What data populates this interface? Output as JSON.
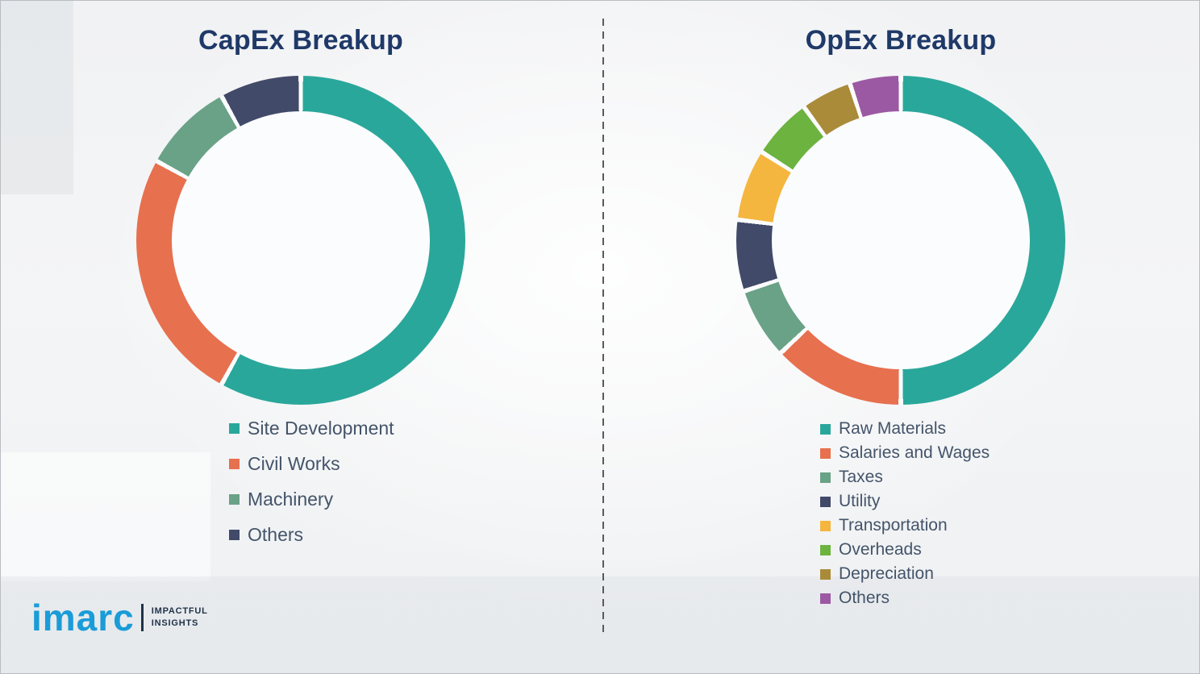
{
  "chart_data": [
    {
      "type": "pie",
      "subtype": "donut",
      "title": "CapEx Breakup",
      "labels": [
        "Site Development",
        "Civil Works",
        "Machinery",
        "Others"
      ],
      "values": [
        58,
        25,
        9,
        8
      ],
      "colors": [
        "#2aa79b",
        "#e7704f",
        "#6aa287",
        "#414a68"
      ],
      "start_angle": "top, clockwise",
      "legend_position": "below-chart-left",
      "value_units": "percent-estimated"
    },
    {
      "type": "pie",
      "subtype": "donut",
      "title": "OpEx Breakup",
      "labels": [
        "Raw Materials",
        "Salaries and Wages",
        "Taxes",
        "Utility",
        "Transportation",
        "Overheads",
        "Depreciation",
        "Others"
      ],
      "values": [
        50,
        13,
        7,
        7,
        7,
        6,
        5,
        5
      ],
      "colors": [
        "#2aa79b",
        "#e7704f",
        "#6aa287",
        "#414a68",
        "#f4b63f",
        "#6cb33f",
        "#a98b3a",
        "#9c59a3"
      ],
      "start_angle": "top, clockwise",
      "legend_position": "below-chart-left",
      "value_units": "percent-estimated"
    }
  ],
  "brand": {
    "logo_text": "imarc",
    "tagline_line1": "IMPACTFUL",
    "tagline_line2": "INSIGHTS"
  },
  "style": {
    "title_color": "#1f3968",
    "legend_text_color": "#44546a",
    "logo_color": "#1a9cd8",
    "donut_hole_color": "#fbfcfd"
  }
}
